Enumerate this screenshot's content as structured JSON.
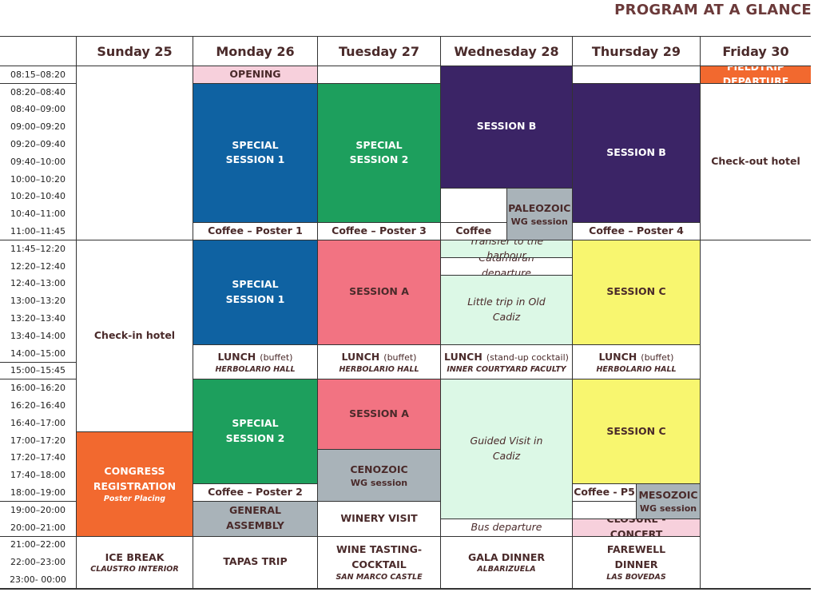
{
  "title": "PROGRAM AT A GLANCE",
  "days": [
    "Sunday 25",
    "Monday 26",
    "Tuesday 27",
    "Wednesday 28",
    "Thursday 29",
    "Friday 30"
  ],
  "times": [
    "08:15–08:20",
    "08:20–08:40",
    "08:40–09:00",
    "09:00–09:20",
    "09:20–09:40",
    "09:40–10:00",
    "10:00–10:20",
    "10:20–10:40",
    "10:40–11:00",
    "11:00–11:45",
    "11:45–12:20",
    "12:20–12:40",
    "12:40–13:00",
    "13:00–13:20",
    "13:20–13:40",
    "13:40–14:00",
    "14:00–15:00",
    "15:00–15:45",
    "16:00–16:20",
    "16:20–16:40",
    "16:40–17:00",
    "17:00–17:20",
    "17:20–17:40",
    "17:40–18:00",
    "18:00–19:00",
    "19:00–20:00",
    "20:00–21:00",
    "21:00–22:00",
    "22:00–23:00",
    "23:00- 00:00"
  ],
  "colors": {
    "white": "#ffffff",
    "pink": "#f7d0dc",
    "blue": "#0f62a2",
    "green": "#1d9f5d",
    "purple": "#3b2466",
    "red": "#f27382",
    "yellow": "#f8f66f",
    "mint": "#dcf8e6",
    "gray": "#a9b3b9",
    "orange": "#f2692f"
  },
  "events": [
    {
      "day": 0,
      "from": 1,
      "to": 10,
      "color": "white",
      "title": ""
    },
    {
      "day": 0,
      "from": 11,
      "to": 21,
      "color": "white",
      "title": "Check-in hotel"
    },
    {
      "day": 0,
      "from": 22,
      "to": 27,
      "color": "orange",
      "light": true,
      "title": "CONGRESS REGISTRATION",
      "sub": "Poster Placing"
    },
    {
      "day": 0,
      "from": 28,
      "to": 30,
      "color": "white",
      "title": "ICE BREAK",
      "sub": "CLAUSTRO INTERIOR"
    },
    {
      "day": 1,
      "from": 1,
      "to": 1,
      "color": "pink",
      "title": "OPENING"
    },
    {
      "day": 1,
      "from": 2,
      "to": 9,
      "color": "blue",
      "light": true,
      "title": "SPECIAL SESSION 1"
    },
    {
      "day": 1,
      "from": 10,
      "to": 10,
      "color": "white",
      "title": "Coffee – Poster 1"
    },
    {
      "day": 1,
      "from": 11,
      "to": 16,
      "color": "blue",
      "light": true,
      "title": "SPECIAL SESSION 1"
    },
    {
      "day": 1,
      "from": 17,
      "to": 18,
      "color": "white",
      "title": "LUNCH",
      "note": "(buffet)",
      "sub": "HERBOLARIO HALL"
    },
    {
      "day": 1,
      "from": 19,
      "to": 24,
      "color": "green",
      "light": true,
      "title": "SPECIAL SESSION 2"
    },
    {
      "day": 1,
      "from": 25,
      "to": 25,
      "color": "white",
      "title": "Coffee – Poster 2"
    },
    {
      "day": 1,
      "from": 26,
      "to": 27,
      "color": "gray",
      "title": "GENERAL ASSEMBLY"
    },
    {
      "day": 1,
      "from": 28,
      "to": 30,
      "color": "white",
      "title": "TAPAS TRIP"
    },
    {
      "day": 2,
      "from": 1,
      "to": 1,
      "color": "white",
      "title": ""
    },
    {
      "day": 2,
      "from": 2,
      "to": 9,
      "color": "green",
      "light": true,
      "title": "SPECIAL SESSION 2"
    },
    {
      "day": 2,
      "from": 10,
      "to": 10,
      "color": "white",
      "title": "Coffee – Poster 3"
    },
    {
      "day": 2,
      "from": 11,
      "to": 16,
      "color": "red",
      "title": "SESSION A"
    },
    {
      "day": 2,
      "from": 17,
      "to": 18,
      "color": "white",
      "title": "LUNCH",
      "note": "(buffet)",
      "sub": "HERBOLARIO HALL"
    },
    {
      "day": 2,
      "from": 19,
      "to": 22,
      "color": "red",
      "title": "SESSION A"
    },
    {
      "day": 2,
      "from": 23,
      "to": 25,
      "color": "gray",
      "title": "CENOZOIC",
      "note": "WG session"
    },
    {
      "day": 2,
      "from": 26,
      "to": 27,
      "color": "white",
      "title": "WINERY VISIT"
    },
    {
      "day": 2,
      "from": 28,
      "to": 30,
      "color": "white",
      "title": "WINE TASTING- COCKTAIL",
      "sub": "SAN MARCO CASTLE"
    },
    {
      "day": 3,
      "from": 1,
      "to": 7,
      "color": "purple",
      "light": true,
      "title": "SESSION B"
    },
    {
      "day": 3,
      "from": 8,
      "to": 9,
      "track": "left",
      "color": "white",
      "title": ""
    },
    {
      "day": 3,
      "from": 10,
      "to": 10,
      "track": "left",
      "color": "white",
      "title": "Coffee"
    },
    {
      "day": 3,
      "from": 8,
      "to": 10,
      "track": "right",
      "color": "gray",
      "title": "PALEOZOIC",
      "note": "WG session"
    },
    {
      "day": 3,
      "from": 11,
      "to": 11,
      "color": "mint",
      "italic": true,
      "title": "Transfer to the harbour"
    },
    {
      "day": 3,
      "from": 12,
      "to": 12,
      "color": "white",
      "italic": true,
      "title": "Catamaran departure"
    },
    {
      "day": 3,
      "from": 13,
      "to": 16,
      "color": "mint",
      "italic": true,
      "title": "Little trip in Old Cadiz"
    },
    {
      "day": 3,
      "from": 17,
      "to": 18,
      "color": "white",
      "title": "LUNCH",
      "note": "(stand-up cocktail)",
      "sub": "INNER COURTYARD FACULTY"
    },
    {
      "day": 3,
      "from": 19,
      "to": 26,
      "color": "mint",
      "italic": true,
      "title": "Guided Visit in Cadiz"
    },
    {
      "day": 3,
      "from": 27,
      "to": 27,
      "color": "white",
      "italic": true,
      "title": "Bus departure"
    },
    {
      "day": 3,
      "from": 28,
      "to": 30,
      "color": "white",
      "title": "GALA DINNER",
      "sub": "ALBARIZUELA"
    },
    {
      "day": 4,
      "from": 1,
      "to": 1,
      "color": "white",
      "title": ""
    },
    {
      "day": 4,
      "from": 2,
      "to": 9,
      "color": "purple",
      "light": true,
      "title": "SESSION B"
    },
    {
      "day": 4,
      "from": 10,
      "to": 10,
      "color": "white",
      "title": "Coffee – Poster 4"
    },
    {
      "day": 4,
      "from": 11,
      "to": 16,
      "color": "yellow",
      "title": "SESSION C"
    },
    {
      "day": 4,
      "from": 17,
      "to": 18,
      "color": "white",
      "title": "LUNCH",
      "note": "(buffet)",
      "sub": "HERBOLARIO HALL"
    },
    {
      "day": 4,
      "from": 19,
      "to": 24,
      "color": "yellow",
      "title": "SESSION C"
    },
    {
      "day": 4,
      "from": 25,
      "to": 25,
      "track": "left",
      "color": "white",
      "title": "Coffee - P5"
    },
    {
      "day": 4,
      "from": 26,
      "to": 26,
      "track": "left",
      "color": "white",
      "title": ""
    },
    {
      "day": 4,
      "from": 25,
      "to": 26,
      "track": "right",
      "color": "gray",
      "title": "MESOZOIC",
      "note": "WG session"
    },
    {
      "day": 4,
      "from": 27,
      "to": 27,
      "color": "pink",
      "title": "CLOSURE - CONCERT"
    },
    {
      "day": 4,
      "from": 28,
      "to": 30,
      "color": "white",
      "title": "FAREWELL DINNER",
      "sub": "LAS BOVEDAS"
    },
    {
      "day": 5,
      "from": 1,
      "to": 1,
      "color": "orange",
      "light": true,
      "title": "FIELDTRIP DEPARTURE"
    },
    {
      "day": 5,
      "from": 2,
      "to": 10,
      "color": "white",
      "title": "Check-out hotel"
    },
    {
      "day": 5,
      "from": 11,
      "to": 30,
      "color": "white",
      "title": ""
    }
  ]
}
